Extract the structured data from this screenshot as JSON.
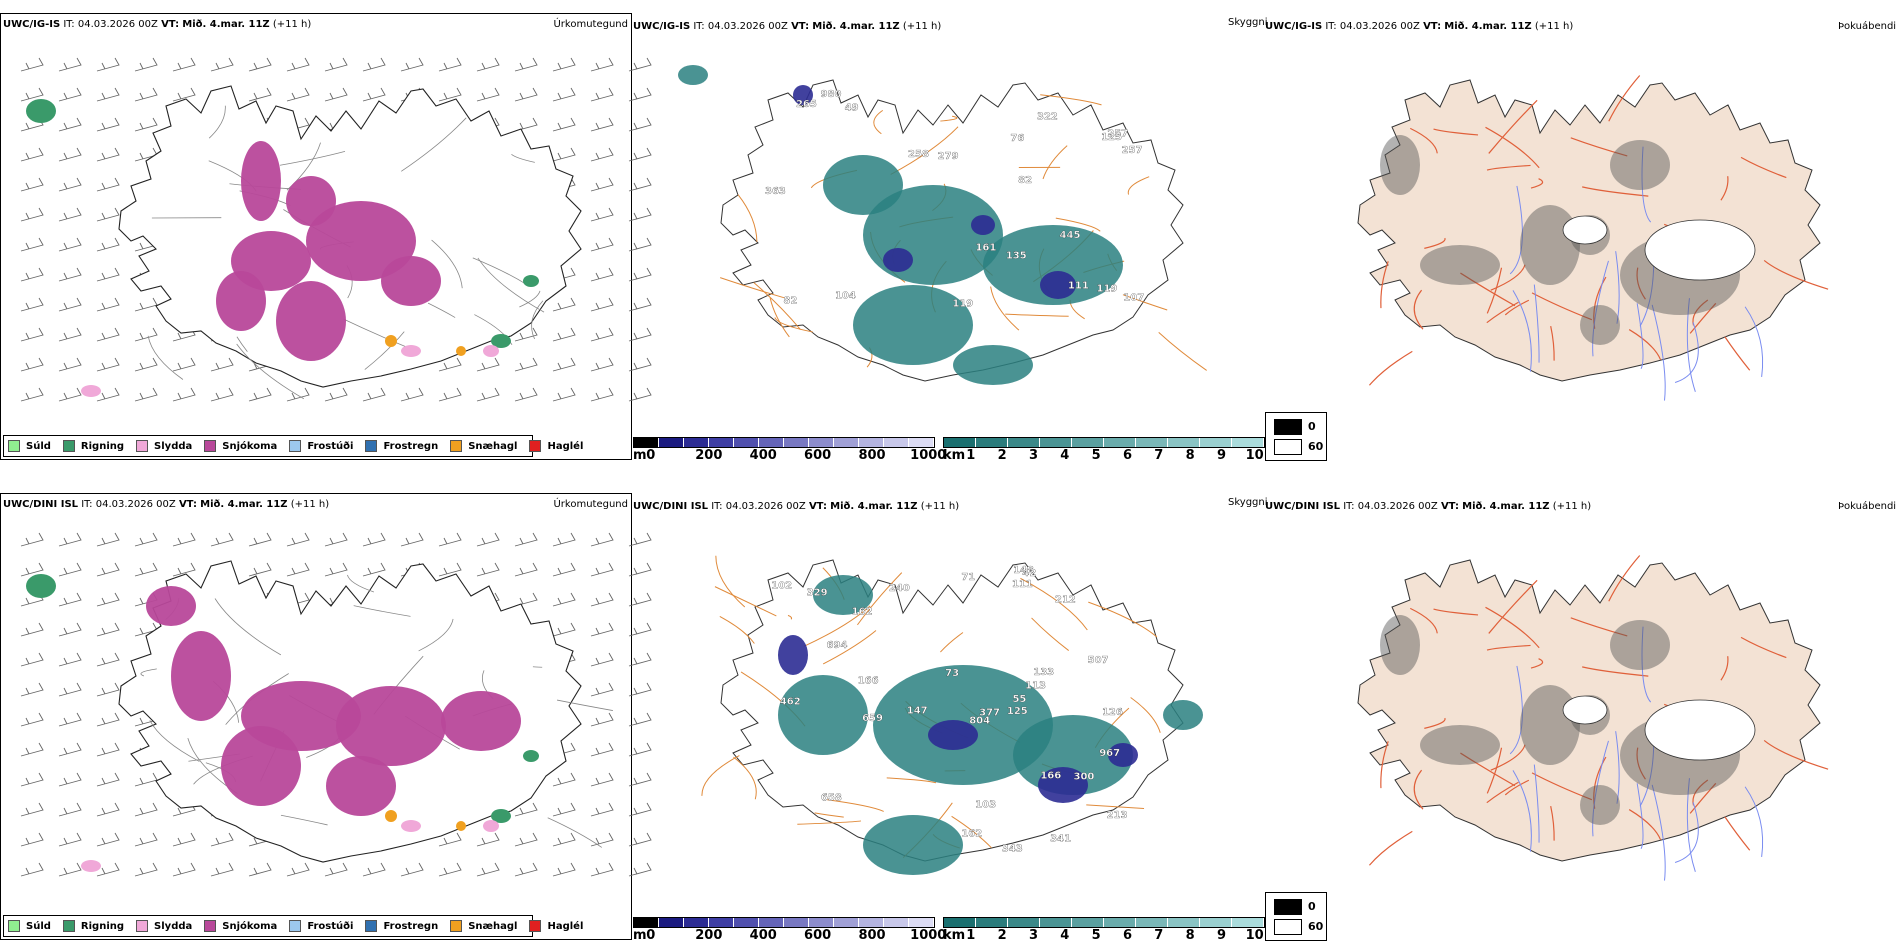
{
  "rows": [
    {
      "model": "UWC/IG-IS",
      "it_label": "IT:",
      "it_value": "04.03.2026 00Z",
      "vt_label": "VT:",
      "vt_value": "Mið. 4.mar. 11Z",
      "lead": "(+11 h)"
    },
    {
      "model": "UWC/DINI ISL",
      "it_label": "IT:",
      "it_value": "04.03.2026 00Z",
      "vt_label": "VT:",
      "vt_value": "Mið. 4.mar. 11Z",
      "lead": "(+11 h)"
    }
  ],
  "panel_types": {
    "precip": "Úrkomutegund",
    "visibility": "Skyggni",
    "fog": "Þokuábendi"
  },
  "precip_legend": [
    {
      "label": "Súld",
      "color": "#90ee90"
    },
    {
      "label": "Rigning",
      "color": "#3a9a6a"
    },
    {
      "label": "Slydda",
      "color": "#f0a8d8"
    },
    {
      "label": "Snjókoma",
      "color": "#b8489a"
    },
    {
      "label": "Frostúði",
      "color": "#9cc8ee"
    },
    {
      "label": "Frostregn",
      "color": "#3070b0"
    },
    {
      "label": "Snæhagl",
      "color": "#f0a020"
    },
    {
      "label": "Haglél",
      "color": "#e02020"
    }
  ],
  "ceiling_bar": {
    "unit": "m",
    "ticks": [
      "0",
      "200",
      "400",
      "600",
      "800",
      "1000"
    ],
    "colors": [
      "#000000",
      "#1a1a80",
      "#2c2c94",
      "#3e3ea4",
      "#5050ae",
      "#6464b8",
      "#7878c2",
      "#8c8ccc",
      "#a0a0d6",
      "#b4b4e0",
      "#c8c8ea",
      "#dcdcf4"
    ]
  },
  "vis_bar": {
    "unit": "km",
    "ticks": [
      "1",
      "2",
      "3",
      "4",
      "5",
      "6",
      "7",
      "8",
      "9",
      "10"
    ],
    "colors": [
      "#1a7070",
      "#2a7c7c",
      "#3a8888",
      "#4a9494",
      "#5aa0a0",
      "#6aacac",
      "#7ab8b8",
      "#8ac4c4",
      "#9ad0d0",
      "#aadcdc"
    ]
  },
  "fog_legend": [
    {
      "label": "0",
      "color": "#000000"
    },
    {
      "label": "60",
      "color": "#ffffff"
    }
  ],
  "ceiling_labels_top": [
    "111",
    "445",
    "104",
    "82",
    "82",
    "279",
    "265",
    "76",
    "119",
    "258",
    "257",
    "135",
    "125",
    "980",
    "49",
    "257",
    "322",
    "161",
    "119",
    "107",
    "363"
  ],
  "ceiling_labels_bottom": [
    "694",
    "240",
    "111",
    "300",
    "213",
    "507",
    "377",
    "113",
    "462",
    "341",
    "102",
    "103",
    "133",
    "162",
    "166",
    "212",
    "148",
    "126",
    "659",
    "343",
    "147",
    "162",
    "73",
    "71",
    "967",
    "804",
    "55",
    "42",
    "658",
    "329",
    "166",
    "125"
  ]
}
